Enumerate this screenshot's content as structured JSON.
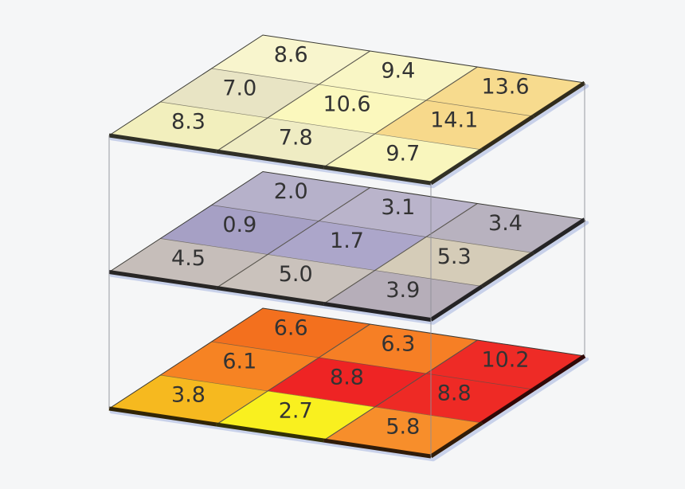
{
  "background_color": "#f5f6f7",
  "label_text_color": "#333333",
  "chart_data": {
    "type": "heatmap",
    "subtype": "stacked-3d-heatmap-layers",
    "grid": {
      "rows": 3,
      "cols": 3
    },
    "value_format": "one_decimal",
    "layers": [
      {
        "position": "top",
        "values": [
          [
            8.6,
            9.4,
            13.6
          ],
          [
            7.0,
            10.6,
            14.1
          ],
          [
            8.3,
            7.8,
            9.7
          ]
        ],
        "cell_colors": [
          [
            "#f8f5cd",
            "#f9f6c5",
            "#f7db8e"
          ],
          [
            "#e8e4c4",
            "#fbf8bd",
            "#f7d98b"
          ],
          [
            "#f2efbd",
            "#efecc3",
            "#f9f6bd"
          ]
        ]
      },
      {
        "position": "middle",
        "values": [
          [
            2.0,
            3.1,
            3.4
          ],
          [
            0.9,
            1.7,
            5.3
          ],
          [
            4.5,
            5.0,
            3.9
          ]
        ],
        "cell_colors": [
          [
            "#b6b1ca",
            "#bab4cb",
            "#b8b2bf"
          ],
          [
            "#a6a0c5",
            "#aca6ca",
            "#d5ccb8"
          ],
          [
            "#c6beba",
            "#cac2bc",
            "#b6aeb9"
          ]
        ]
      },
      {
        "position": "bottom",
        "values": [
          [
            6.6,
            6.3,
            10.2
          ],
          [
            6.1,
            8.8,
            8.8
          ],
          [
            3.8,
            2.7,
            5.8
          ]
        ],
        "cell_colors": [
          [
            "#f3701e",
            "#f67f25",
            "#ee2b26"
          ],
          [
            "#f68323",
            "#ee2424",
            "#ee2a25"
          ],
          [
            "#f6b91f",
            "#f9f01f",
            "#f78e2b"
          ]
        ]
      }
    ],
    "colors": {
      "grid_line": "#55524a",
      "outline": "#3a3a35",
      "connector_line": "#8f8f98",
      "edge_shadow": "#c8d1ea"
    }
  }
}
